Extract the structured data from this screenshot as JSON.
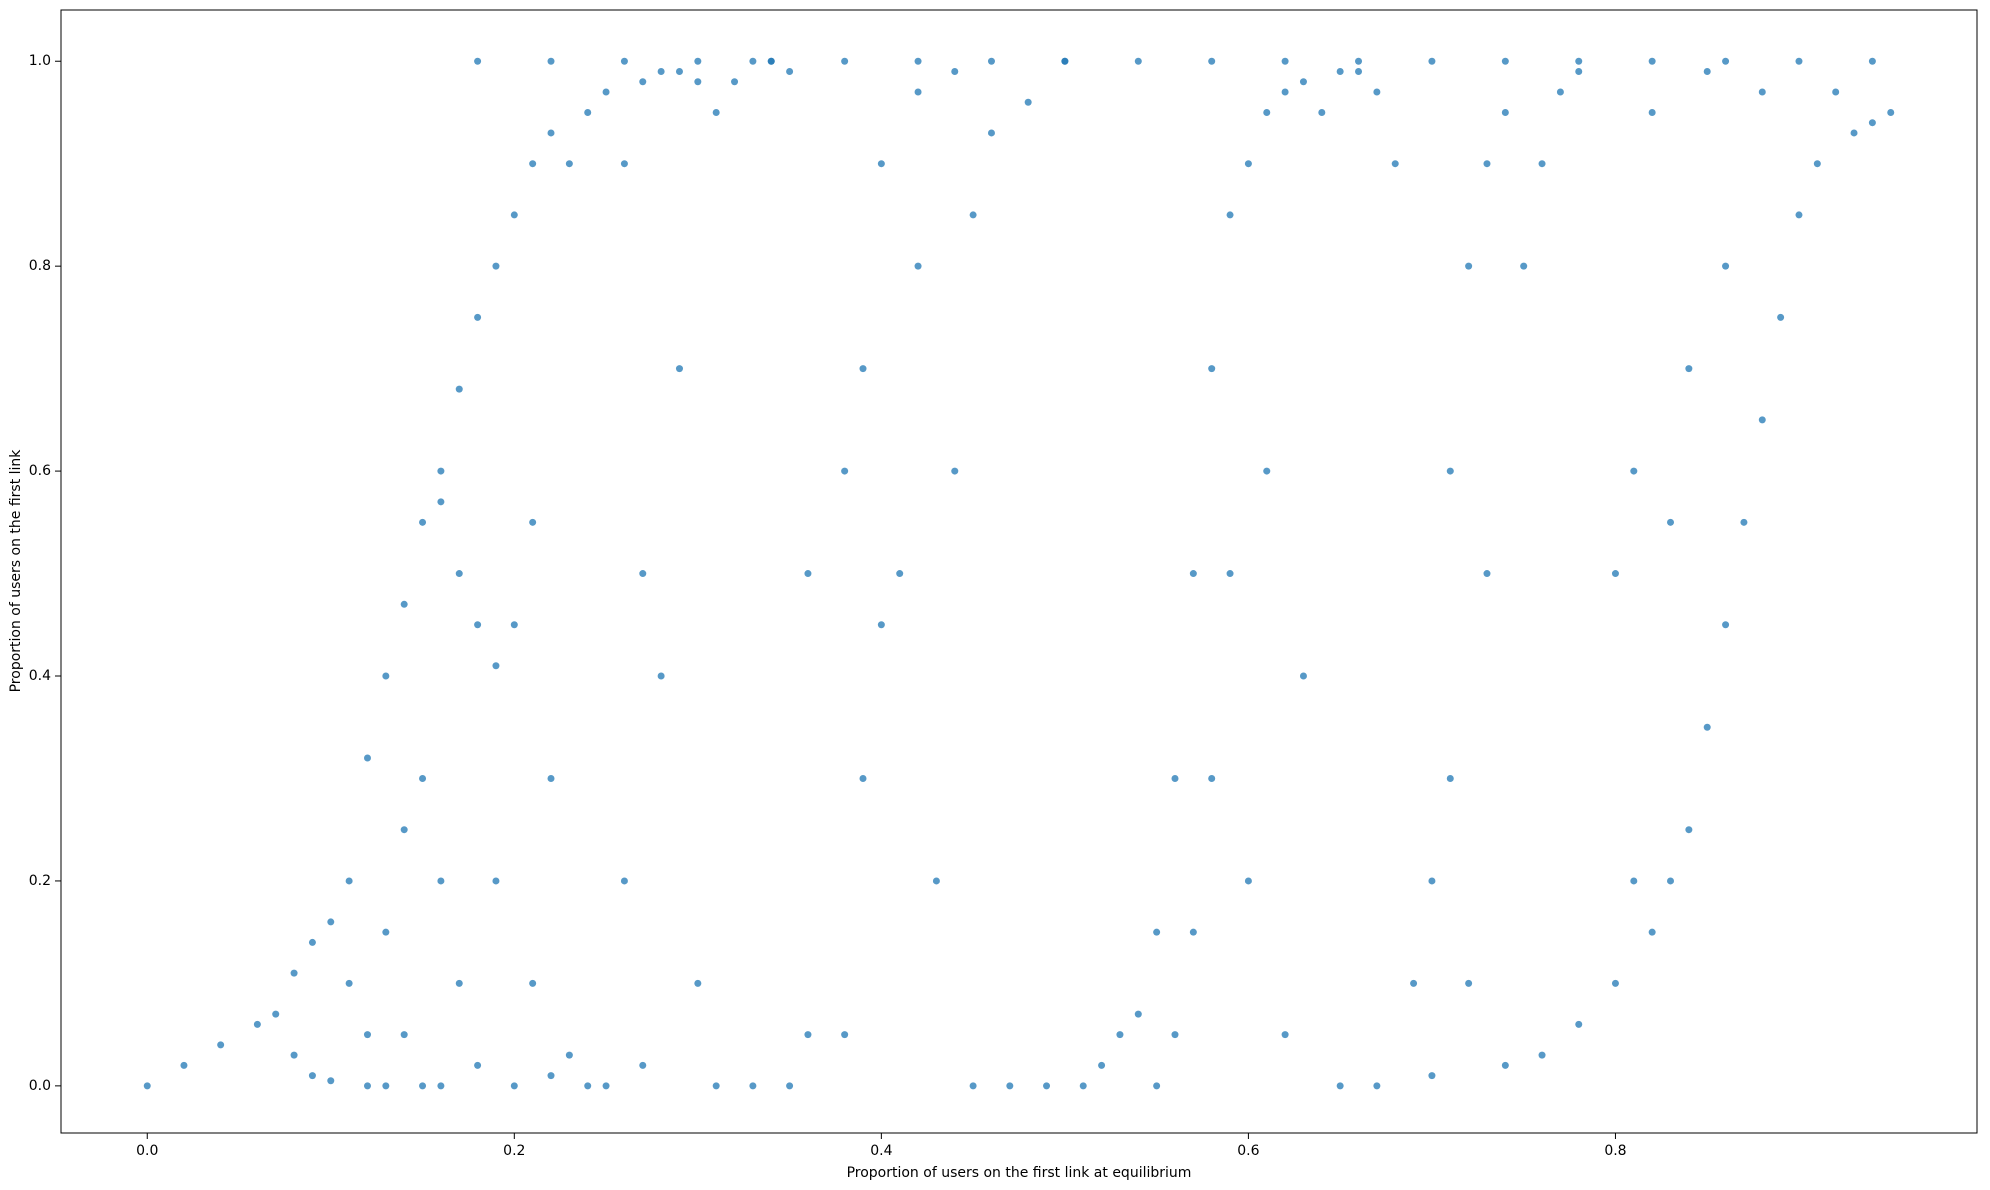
{
  "chart_data": {
    "type": "scatter",
    "xlabel": "Proportion of users on the first link at equilibrium",
    "ylabel": "Proportion of users on the first link",
    "color": "#1f77b4",
    "xlim": [
      -0.047,
      0.997
    ],
    "ylim": [
      -0.046,
      1.05
    ],
    "xticks": [
      {
        "value": 0,
        "label": "0.0"
      },
      0.2,
      0.4,
      0.6,
      0.8
    ],
    "yticks": [
      {
        "value": 0,
        "label": "0.0"
      },
      0.2,
      0.4,
      0.6,
      0.8,
      {
        "value": 1,
        "label": "1.0"
      }
    ],
    "x": [
      0,
      0.02,
      0.04,
      0.06,
      0.07,
      0.08,
      0.08,
      0.09,
      0.09,
      0.1,
      0.1,
      0.11,
      0.11,
      0.12,
      0.12,
      0.12,
      0.13,
      0.13,
      0.13,
      0.14,
      0.14,
      0.14,
      0.15,
      0.15,
      0.15,
      0.16,
      0.16,
      0.16,
      0.16,
      0.17,
      0.17,
      0.17,
      0.18,
      0.18,
      0.18,
      0.19,
      0.19,
      0.19,
      0.2,
      0.2,
      0.2,
      0.21,
      0.21,
      0.21,
      0.22,
      0.22,
      0.22,
      0.23,
      0.23,
      0.24,
      0.24,
      0.25,
      0.25,
      0.26,
      0.26,
      0.27,
      0.27,
      0.27,
      0.28,
      0.28,
      0.29,
      0.29,
      0.3,
      0.3,
      0.31,
      0.31,
      0.18,
      0.22,
      0.26,
      0.3,
      0.34,
      0.38,
      0.42,
      0.46,
      0.5,
      0.54,
      0.58,
      0.62,
      0.66,
      0.7,
      0.74,
      0.78,
      0.82,
      0.86,
      0.9,
      0.94,
      0.32,
      0.33,
      0.34,
      0.35,
      0.36,
      0.36,
      0.33,
      0.35,
      0.38,
      0.38,
      0.39,
      0.39,
      0.4,
      0.4,
      0.41,
      0.42,
      0.42,
      0.43,
      0.44,
      0.44,
      0.45,
      0.45,
      0.46,
      0.48,
      0.5,
      0.47,
      0.49,
      0.51,
      0.52,
      0.53,
      0.54,
      0.55,
      0.55,
      0.56,
      0.56,
      0.57,
      0.57,
      0.58,
      0.58,
      0.59,
      0.59,
      0.6,
      0.6,
      0.61,
      0.61,
      0.62,
      0.62,
      0.63,
      0.63,
      0.64,
      0.65,
      0.66,
      0.67,
      0.68,
      0.65,
      0.67,
      0.69,
      0.7,
      0.7,
      0.71,
      0.71,
      0.72,
      0.72,
      0.73,
      0.73,
      0.74,
      0.74,
      0.75,
      0.76,
      0.77,
      0.78,
      0.76,
      0.78,
      0.8,
      0.8,
      0.81,
      0.81,
      0.82,
      0.82,
      0.83,
      0.83,
      0.84,
      0.84,
      0.85,
      0.85,
      0.86,
      0.86,
      0.87,
      0.88,
      0.88,
      0.89,
      0.9,
      0.91,
      0.92,
      0.93,
      0.94,
      0.95
    ],
    "values": [
      0,
      0.02,
      0.04,
      0.06,
      0.07,
      0.11,
      0.03,
      0.14,
      0.01,
      0.16,
      0.005,
      0.2,
      0.1,
      0.32,
      0.05,
      0,
      0.4,
      0.15,
      0,
      0.47,
      0.25,
      0.05,
      0.55,
      0.3,
      0,
      0.6,
      0.57,
      0.2,
      0,
      0.68,
      0.5,
      0.1,
      0.75,
      0.45,
      0.02,
      0.8,
      0.41,
      0.2,
      0.85,
      0.45,
      0,
      0.9,
      0.55,
      0.1,
      0.93,
      0.3,
      0.01,
      0.9,
      0.03,
      0.95,
      0,
      0.97,
      0,
      0.9,
      0.2,
      0.98,
      0.5,
      0.02,
      0.99,
      0.4,
      0.99,
      0.7,
      0.98,
      0.1,
      0.95,
      0,
      1,
      1,
      1,
      1,
      1,
      1,
      1,
      1,
      1,
      1,
      1,
      1,
      1,
      1,
      1,
      1,
      1,
      1,
      1,
      1,
      0.98,
      1,
      1,
      0.99,
      0.5,
      0.05,
      0,
      0,
      0.6,
      0.05,
      0.7,
      0.3,
      0.9,
      0.45,
      0.5,
      0.97,
      0.8,
      0.2,
      0.99,
      0.6,
      0.85,
      0,
      0.93,
      0.96,
      1,
      0,
      0,
      0,
      0.02,
      0.05,
      0.07,
      0.15,
      0,
      0.3,
      0.05,
      0.5,
      0.15,
      0.7,
      0.3,
      0.85,
      0.5,
      0.9,
      0.2,
      0.95,
      0.6,
      0.97,
      0.05,
      0.98,
      0.4,
      0.95,
      0.99,
      0.99,
      0.97,
      0.9,
      0,
      0,
      0.1,
      0.2,
      0.01,
      0.6,
      0.3,
      0.8,
      0.1,
      0.9,
      0.5,
      0.95,
      0.02,
      0.8,
      0.9,
      0.97,
      0.99,
      0.03,
      0.06,
      0.1,
      0.5,
      0.6,
      0.2,
      0.95,
      0.15,
      0.55,
      0.2,
      0.7,
      0.25,
      0.99,
      0.35,
      0.45,
      0.8,
      0.55,
      0.65,
      0.97,
      0.75,
      0.85,
      0.9,
      0.97,
      0.93,
      0.94,
      0.95
    ]
  }
}
